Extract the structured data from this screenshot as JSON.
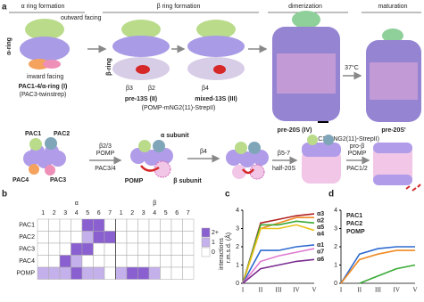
{
  "panel_a": {
    "label": "a",
    "stages": [
      "α ring formation",
      "β ring formation",
      "dimerization",
      "maturation"
    ],
    "annotations": [
      "outward facing",
      "α-ring",
      "inward facing",
      "PAC1-4/α-ring (I)",
      "(PAC3-twinstrep)",
      "β-ring",
      "β3",
      "β2",
      "β4",
      "pre-13S (II)",
      "mixed-13S (III)",
      "(POMP-mNG2(11)-StrepII)",
      "37°C",
      "pre-20S (IV)",
      "pre-20S'",
      "(PAC2-mNG2(11)-StrepII)"
    ],
    "schematic": [
      "PAC1",
      "PAC2",
      "PAC4",
      "PAC3",
      "β2/3",
      "POMP",
      "PAC3/4",
      "α subunit",
      "POMP",
      "β subunit",
      "β4",
      "β5-7",
      "half-20S",
      "pro-β",
      "POMP",
      "PAC1/2"
    ]
  },
  "panel_b": {
    "label": "b",
    "type": "heatmap",
    "group_labels": [
      "α",
      "β"
    ],
    "columns": [
      1,
      2,
      3,
      4,
      5,
      6,
      7,
      1,
      2,
      3,
      4,
      5,
      6,
      7
    ],
    "rows": [
      "PAC1",
      "PAC2",
      "PAC3",
      "PAC4",
      "POMP"
    ],
    "values": [
      [
        0,
        0,
        0,
        0,
        2,
        2,
        0,
        0,
        0,
        0,
        0,
        0,
        0,
        0
      ],
      [
        0,
        0,
        0,
        0,
        1,
        2,
        2,
        0,
        0,
        0,
        0,
        0,
        0,
        0
      ],
      [
        0,
        0,
        0,
        2,
        2,
        0,
        0,
        0,
        0,
        0,
        0,
        0,
        0,
        0
      ],
      [
        0,
        0,
        2,
        1,
        0,
        0,
        0,
        0,
        0,
        0,
        0,
        0,
        0,
        0
      ],
      [
        1,
        1,
        1,
        2,
        1,
        1,
        0,
        1,
        2,
        2,
        1,
        0,
        0,
        0
      ]
    ],
    "colors": [
      "#ffffff",
      "#c4b0ea",
      "#8a5fd0"
    ],
    "legend_labels": [
      "2+",
      "1",
      "0"
    ],
    "legend_title": "interactions"
  },
  "panel_c": {
    "label": "c",
    "type": "line",
    "ylabel": "r.m.s.d. (Å)",
    "categories": [
      "I",
      "II",
      "III",
      "IV",
      "V"
    ],
    "ylim": [
      0,
      4
    ],
    "yticks": [
      0,
      1,
      2,
      3,
      4
    ],
    "series": [
      {
        "name": "α3",
        "color": "#b22222",
        "values": [
          0,
          3.3,
          3.5,
          3.7,
          3.8
        ]
      },
      {
        "name": "α2",
        "color": "#f08a24",
        "values": [
          0,
          3.0,
          3.3,
          3.6,
          3.6
        ]
      },
      {
        "name": "α5",
        "color": "#3aaa35",
        "values": [
          0,
          3.2,
          3.2,
          3.4,
          3.3
        ]
      },
      {
        "name": "α4",
        "color": "#e8c21c",
        "values": [
          0,
          3.0,
          3.0,
          3.2,
          2.9
        ]
      },
      {
        "name": "α1",
        "color": "#2f6bd1",
        "values": [
          0,
          1.8,
          1.8,
          2.0,
          2.1
        ]
      },
      {
        "name": "α7",
        "color": "#e07ad0",
        "values": [
          0,
          1.2,
          1.5,
          1.7,
          1.9
        ]
      },
      {
        "name": "α6",
        "color": "#7a2c8f",
        "values": [
          0,
          0.8,
          1.0,
          1.2,
          1.3
        ]
      }
    ]
  },
  "panel_d": {
    "label": "d",
    "type": "line",
    "categories": [
      "I",
      "II",
      "III",
      "IV",
      "V"
    ],
    "ylim": [
      0,
      4
    ],
    "yticks": [
      0,
      1,
      2,
      3,
      4
    ],
    "series": [
      {
        "name": "PAC1",
        "color": "#2f6bd1",
        "values": [
          0,
          1.6,
          1.9,
          2.0,
          2.0
        ]
      },
      {
        "name": "PAC2",
        "color": "#f08a24",
        "values": [
          0,
          1.3,
          1.6,
          1.8,
          1.8
        ]
      },
      {
        "name": "POMP",
        "color": "#3aaa35",
        "values": [
          null,
          0,
          0.4,
          0.8,
          1.0
        ]
      }
    ]
  }
}
